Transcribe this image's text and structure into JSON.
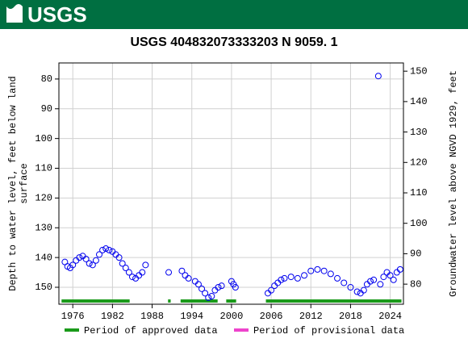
{
  "header": {
    "logo": "USGS"
  },
  "chart_data": {
    "type": "scatter",
    "title": "USGS 404832073333203 N  9059. 1",
    "ylabel": "Depth to water level, feet below land surface",
    "y2label": "Groundwater level above NGVD 1929, feet",
    "xlim": [
      1973.9,
      2026
    ],
    "xticks": [
      1976,
      1982,
      1988,
      1994,
      2000,
      2006,
      2012,
      2018,
      2024
    ],
    "ylim": [
      74.6,
      155.7
    ],
    "y_inverted": true,
    "yticks": [
      80,
      90,
      100,
      110,
      120,
      130,
      140,
      150
    ],
    "y2lim": [
      73.4,
      152.7
    ],
    "y2ticks": [
      80,
      90,
      100,
      110,
      120,
      130,
      140,
      150
    ],
    "grid": true,
    "color": "#0000ee",
    "x": [
      1974.8,
      1975.2,
      1975.6,
      1976,
      1976.5,
      1977,
      1977.5,
      1978,
      1978.5,
      1979,
      1979.5,
      1980,
      1980.5,
      1981,
      1981.5,
      1982,
      1982.5,
      1983,
      1983.5,
      1984,
      1984.5,
      1985,
      1985.5,
      1986,
      1986.5,
      1987,
      1990.5,
      1992.5,
      1993,
      1993.5,
      1994.5,
      1995,
      1995.5,
      1996,
      1996.5,
      1997,
      1997.5,
      1998,
      1998.5,
      2000,
      2000.3,
      2000.6,
      2005.5,
      2006,
      2006.5,
      2007,
      2007.5,
      2008,
      2009,
      2010,
      2011,
      2012,
      2013,
      2014,
      2015,
      2016,
      2017,
      2018,
      2019,
      2019.5,
      2020,
      2020.5,
      2021,
      2021.5,
      2022.2,
      2022.5,
      2023,
      2023.5,
      2024,
      2024.5,
      2025,
      2025.5
    ],
    "values": [
      141.5,
      143,
      143.5,
      142.5,
      141,
      140,
      139.5,
      140.5,
      142,
      142.5,
      141,
      139,
      137.5,
      137,
      137.5,
      138,
      139,
      140,
      142,
      143.5,
      145,
      146.5,
      147,
      146,
      145,
      142.5,
      145,
      144.5,
      146,
      147,
      148,
      149,
      150.5,
      152,
      153.5,
      153,
      151,
      150,
      149.5,
      148,
      149,
      150,
      152,
      151,
      149.5,
      148.5,
      147.5,
      147,
      146.5,
      147,
      146,
      144.5,
      144,
      144.5,
      145.5,
      147,
      148.5,
      150,
      151.5,
      152,
      151,
      149,
      148,
      147.5,
      79,
      149,
      146.5,
      145,
      146,
      147.5,
      145,
      144
    ],
    "periods": [
      {
        "name": "Period of approved data",
        "color": "#1a9a1a",
        "ranges": [
          [
            1974.3,
            1984.6
          ],
          [
            1990.4,
            1990.8
          ],
          [
            1992.3,
            1997.9
          ],
          [
            1999.2,
            2000.7
          ],
          [
            2005.2,
            2025.7
          ]
        ]
      },
      {
        "name": "Period of provisional data",
        "color": "#ee44cc",
        "ranges": []
      }
    ]
  }
}
